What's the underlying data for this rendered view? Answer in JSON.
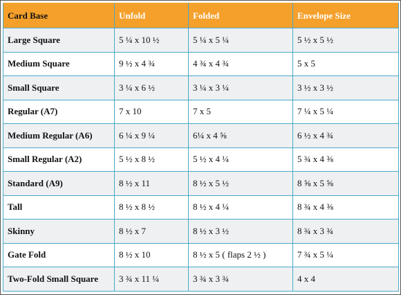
{
  "table": {
    "headers": [
      "Card Base",
      "Unfold",
      "Folded",
      "Envelope Size"
    ],
    "rows": [
      [
        "Large Square",
        "5 ¼ x 10 ½",
        "5 ¼ x 5 ¼",
        "5 ½  x 5 ½"
      ],
      [
        "Medium Square",
        "9 ½  x 4 ¾",
        "4 ¾  x 4 ¾",
        "5 x 5"
      ],
      [
        "Small Square",
        "3 ¼ x 6 ½",
        "3 ¼ x 3 ¼",
        "3 ½  x 3 ½"
      ],
      [
        "Regular (A7)",
        "7  x 10",
        "7 x 5",
        "7 ¼ x 5 ¼"
      ],
      [
        "Medium Regular (A6)",
        "6 ¼ x 9 ¼",
        "6¼  x 4 ⅝",
        "6 ½  x 4 ¾"
      ],
      [
        "Small Regular (A2)",
        "5 ½ x 8 ½",
        "5 ½  x 4 ¼",
        "5 ¾ x 4 ⅜"
      ],
      [
        "Standard (A9)",
        "8 ½ x 11",
        "8 ½ x 5 ½",
        "8 ⅝ x 5 ⅝"
      ],
      [
        "Tall",
        "8 ½ x 8 ½",
        "8 ½ x 4 ¼",
        "8 ¾  x 4 ⅜"
      ],
      [
        "Skinny",
        "8 ½ x 7",
        "8 ½  x 3 ½",
        "8 ¾  x 3 ¾"
      ],
      [
        "Gate Fold",
        "8 ½ x 10",
        "8 ½ x 5  ( flaps 2 ½  )",
        "7 ¾  x 5 ¼"
      ],
      [
        "Two-Fold Small Square",
        "3 ¾  x 11 ¼",
        "3 ¾  x 3 ¾",
        "4 x 4"
      ]
    ]
  },
  "colors": {
    "header_bg": "#f5a02b",
    "grid_line": "#4aa8c9",
    "stripe_bg": "#eef0f2"
  }
}
